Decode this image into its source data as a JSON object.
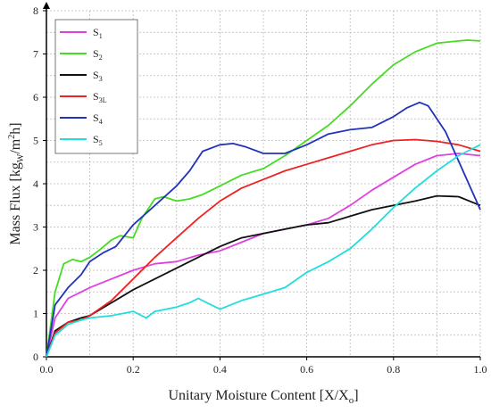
{
  "chart_data": {
    "type": "line",
    "title": "",
    "xlabel": "Unitary Moisture Content [X/X",
    "xlabel_sub": "o",
    "xlabel_end": "]",
    "ylabel_parts": [
      "Mass Flux [kg",
      "W",
      "/m",
      "2",
      "h]"
    ],
    "xlim": [
      0,
      1.0
    ],
    "ylim": [
      0,
      8
    ],
    "x_ticks": [
      0.0,
      0.2,
      0.4,
      0.6,
      0.8,
      1.0
    ],
    "x_tick_labels": [
      "0.0",
      "0.2",
      "0.4",
      "0.6",
      "0.8",
      "1.0"
    ],
    "y_ticks": [
      0,
      1,
      2,
      3,
      4,
      5,
      6,
      7,
      8
    ],
    "y_tick_labels": [
      "0",
      "1",
      "2",
      "3",
      "4",
      "5",
      "6",
      "7",
      "8"
    ],
    "grid": true,
    "legend_position": "top-left",
    "series": [
      {
        "name": "S",
        "name_sub": "1",
        "color": "#e040e0",
        "x": [
          0.0,
          0.02,
          0.05,
          0.08,
          0.1,
          0.15,
          0.2,
          0.25,
          0.3,
          0.35,
          0.4,
          0.45,
          0.5,
          0.55,
          0.6,
          0.65,
          0.7,
          0.75,
          0.8,
          0.85,
          0.9,
          0.95,
          1.0
        ],
        "y": [
          0.0,
          0.9,
          1.35,
          1.5,
          1.6,
          1.8,
          2.0,
          2.15,
          2.2,
          2.35,
          2.45,
          2.65,
          2.85,
          2.95,
          3.05,
          3.2,
          3.5,
          3.85,
          4.15,
          4.45,
          4.65,
          4.7,
          4.65
        ]
      },
      {
        "name": "S",
        "name_sub": "2",
        "color": "#44dd22",
        "x": [
          0.0,
          0.02,
          0.04,
          0.06,
          0.08,
          0.1,
          0.12,
          0.15,
          0.17,
          0.2,
          0.22,
          0.25,
          0.27,
          0.3,
          0.33,
          0.36,
          0.4,
          0.45,
          0.5,
          0.55,
          0.6,
          0.65,
          0.7,
          0.75,
          0.8,
          0.85,
          0.9,
          0.95,
          0.97,
          1.0
        ],
        "y": [
          0.0,
          1.5,
          2.15,
          2.25,
          2.2,
          2.3,
          2.45,
          2.7,
          2.8,
          2.75,
          3.2,
          3.65,
          3.7,
          3.6,
          3.65,
          3.75,
          3.95,
          4.2,
          4.35,
          4.65,
          5.0,
          5.35,
          5.8,
          6.3,
          6.75,
          7.05,
          7.25,
          7.3,
          7.32,
          7.3
        ]
      },
      {
        "name": "S",
        "name_sub": "3",
        "color": "#111111",
        "x": [
          0.0,
          0.02,
          0.05,
          0.08,
          0.1,
          0.15,
          0.2,
          0.25,
          0.3,
          0.35,
          0.4,
          0.45,
          0.5,
          0.55,
          0.6,
          0.65,
          0.7,
          0.75,
          0.8,
          0.85,
          0.9,
          0.95,
          1.0
        ],
        "y": [
          0.0,
          0.6,
          0.8,
          0.9,
          0.95,
          1.25,
          1.55,
          1.8,
          2.05,
          2.3,
          2.55,
          2.75,
          2.85,
          2.95,
          3.05,
          3.1,
          3.25,
          3.4,
          3.5,
          3.6,
          3.72,
          3.7,
          3.5
        ]
      },
      {
        "name": "S",
        "name_sub": "3L",
        "color": "#ee2222",
        "x": [
          0.0,
          0.02,
          0.05,
          0.08,
          0.1,
          0.15,
          0.2,
          0.25,
          0.3,
          0.35,
          0.4,
          0.45,
          0.5,
          0.55,
          0.6,
          0.65,
          0.7,
          0.75,
          0.8,
          0.85,
          0.9,
          0.95,
          1.0
        ],
        "y": [
          0.0,
          0.55,
          0.8,
          0.85,
          0.95,
          1.3,
          1.8,
          2.3,
          2.75,
          3.2,
          3.6,
          3.9,
          4.1,
          4.3,
          4.45,
          4.6,
          4.75,
          4.9,
          5.0,
          5.02,
          4.98,
          4.9,
          4.75
        ]
      },
      {
        "name": "S",
        "name_sub": "4",
        "color": "#2233bb",
        "x": [
          0.0,
          0.02,
          0.05,
          0.08,
          0.1,
          0.13,
          0.16,
          0.2,
          0.25,
          0.3,
          0.33,
          0.36,
          0.4,
          0.43,
          0.46,
          0.5,
          0.55,
          0.6,
          0.65,
          0.7,
          0.75,
          0.8,
          0.83,
          0.86,
          0.88,
          0.92,
          0.96,
          1.0
        ],
        "y": [
          0.0,
          1.2,
          1.6,
          1.9,
          2.2,
          2.4,
          2.55,
          3.05,
          3.5,
          3.95,
          4.3,
          4.75,
          4.9,
          4.93,
          4.85,
          4.7,
          4.7,
          4.9,
          5.15,
          5.25,
          5.3,
          5.55,
          5.75,
          5.88,
          5.8,
          5.2,
          4.3,
          3.4
        ]
      },
      {
        "name": "S",
        "name_sub": "5",
        "color": "#22dddd",
        "x": [
          0.0,
          0.02,
          0.05,
          0.08,
          0.1,
          0.15,
          0.2,
          0.23,
          0.25,
          0.3,
          0.33,
          0.35,
          0.37,
          0.4,
          0.45,
          0.5,
          0.55,
          0.6,
          0.65,
          0.7,
          0.75,
          0.8,
          0.85,
          0.9,
          0.95,
          1.0
        ],
        "y": [
          0.0,
          0.5,
          0.75,
          0.85,
          0.9,
          0.95,
          1.05,
          0.9,
          1.05,
          1.15,
          1.25,
          1.35,
          1.25,
          1.1,
          1.3,
          1.45,
          1.6,
          1.95,
          2.2,
          2.5,
          2.95,
          3.45,
          3.9,
          4.3,
          4.65,
          4.9
        ]
      }
    ]
  }
}
